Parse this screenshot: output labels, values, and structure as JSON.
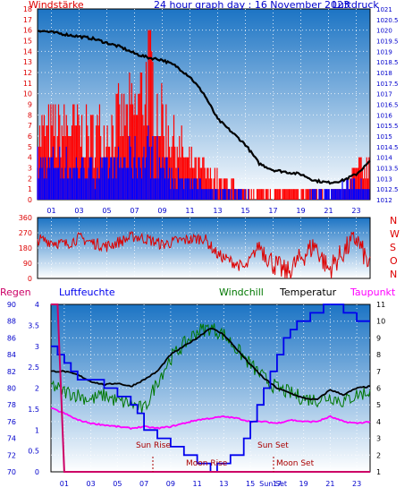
{
  "colors": {
    "wind": "#dd0000",
    "gust": "#ff0000",
    "speed": "#0000ff",
    "pressure": "#000000",
    "direction": "#dd0000",
    "rain": "#cc0066",
    "humidity": "#0000ee",
    "windchill": "#007700",
    "temperature": "#000000",
    "dewpoint": "#ff00ff",
    "axis_text_blue": "#0000cc",
    "sky_top": "#1c74c4",
    "sky_bottom": "#ffffff"
  },
  "chart_data": [
    {
      "type": "line",
      "panel": "wind-pressure",
      "title": "24 hour graph day : 16 November 2023",
      "left_label": "Windstärke",
      "right_label": "Luftdruck",
      "x_tick_labels": [
        "01",
        "03",
        "05",
        "07",
        "09",
        "11",
        "13",
        "15",
        "17",
        "19",
        "21",
        "23"
      ],
      "left_axis": {
        "min": 0,
        "max": 18,
        "ticks": [
          "0",
          "1",
          "2",
          "3",
          "4",
          "5",
          "6",
          "7",
          "8",
          "9",
          "10",
          "11",
          "12",
          "13",
          "14",
          "15",
          "16",
          "17",
          "18"
        ]
      },
      "right_axis": {
        "min": 1012,
        "max": 1021,
        "ticks": [
          "1012",
          "1012.5",
          "1013",
          "1013.5",
          "1014",
          "1014.5",
          "1015",
          "1015.5",
          "1016",
          "1016.5",
          "1017",
          "1017.5",
          "1018",
          "1018.5",
          "1019",
          "1019.5",
          "1020",
          "1020.5",
          "1021"
        ]
      },
      "pressure_series": {
        "x": [
          0,
          1,
          2,
          3,
          4,
          5,
          6,
          7,
          8,
          9,
          10,
          11,
          12,
          13,
          14,
          15,
          16,
          17,
          18,
          19,
          20,
          21,
          22,
          23,
          24
        ],
        "y": [
          1020,
          1019.9,
          1019.8,
          1019.7,
          1019.6,
          1019.4,
          1019.2,
          1018.9,
          1018.7,
          1018.6,
          1018.3,
          1017.8,
          1017,
          1015.8,
          1015.2,
          1014.6,
          1013.7,
          1013.4,
          1013.3,
          1013.2,
          1012.9,
          1012.8,
          1012.9,
          1013.2,
          1013.8
        ]
      },
      "wind_envelope": {
        "x": [
          0,
          2,
          4,
          6,
          7,
          7.5,
          8,
          9,
          10,
          11,
          12,
          13,
          14,
          15,
          16,
          17,
          18,
          19,
          20,
          21,
          22,
          23,
          24
        ],
        "gust_max": [
          9,
          10,
          9,
          11,
          12,
          14,
          18,
          11,
          8,
          5,
          4,
          3,
          2,
          1,
          1,
          1,
          1,
          1,
          1,
          1,
          1,
          4,
          5
        ],
        "speed_max": [
          5,
          5,
          4,
          5,
          6,
          6,
          7,
          5,
          3,
          2,
          2,
          1,
          1,
          1,
          0,
          0,
          0,
          0,
          1,
          1,
          2,
          2,
          1
        ]
      }
    },
    {
      "type": "scatter",
      "panel": "wind-direction",
      "left_axis": {
        "min": 0,
        "max": 360,
        "ticks": [
          "0",
          "90",
          "180",
          "270",
          "360"
        ]
      },
      "right_labels": [
        "N",
        "W",
        "S",
        "O",
        "N"
      ],
      "direction_series": {
        "x": [
          0,
          1,
          2,
          3,
          4,
          5,
          6,
          7,
          8,
          9,
          10,
          11,
          12,
          13,
          14,
          15,
          16,
          17,
          18,
          19,
          20,
          21,
          22,
          23,
          24
        ],
        "y": [
          230,
          220,
          200,
          240,
          210,
          190,
          220,
          250,
          230,
          200,
          220,
          230,
          240,
          140,
          100,
          60,
          200,
          90,
          30,
          120,
          200,
          50,
          150,
          240,
          60
        ]
      }
    },
    {
      "type": "line",
      "panel": "temperature-humidity",
      "legend": [
        "Regen",
        "Luftfeuchte",
        "Windchill",
        "Temperatur",
        "Taupunkt"
      ],
      "humidity_axis": {
        "min": 70,
        "max": 90,
        "ticks": [
          "70",
          "72",
          "74",
          "76",
          "78",
          "80",
          "82",
          "84",
          "86",
          "88",
          "90"
        ]
      },
      "rain_axis": {
        "min": 0,
        "max": 4,
        "ticks": [
          "0",
          "0.5",
          "1",
          "1.5",
          "2",
          "2.5",
          "3",
          "3.5",
          "4"
        ]
      },
      "temp_axis": {
        "min": 1,
        "max": 11,
        "ticks": [
          "1",
          "2",
          "3",
          "4",
          "5",
          "6",
          "7",
          "8",
          "9",
          "10",
          "11"
        ]
      },
      "x_tick_labels": [
        "01",
        "03",
        "05",
        "07",
        "09",
        "11",
        "13",
        "15",
        "17",
        "19",
        "21",
        "23"
      ],
      "x_tick_overlap_label": "Sun Set",
      "annotations": {
        "sun_rise": "Sun Rise",
        "moon_rise": "Moon Rise",
        "sun_set": "Sun Set",
        "moon_set": "Moon Set"
      },
      "humidity_series": {
        "x": [
          0,
          1,
          2,
          3,
          4,
          5,
          6,
          7,
          8,
          9,
          10,
          11,
          12,
          13,
          14,
          15,
          16,
          17,
          18,
          19,
          20,
          21,
          22,
          23,
          24
        ],
        "y": [
          85,
          83,
          81,
          81,
          80,
          79,
          78,
          75,
          74,
          73,
          72,
          71,
          70,
          71,
          72,
          76,
          80,
          84,
          87,
          88,
          89,
          90,
          89,
          88,
          88
        ]
      },
      "temperature_series": {
        "x": [
          0,
          1,
          2,
          3,
          4,
          5,
          6,
          7,
          8,
          9,
          10,
          11,
          12,
          13,
          14,
          15,
          16,
          17,
          18,
          19,
          20,
          21,
          22,
          23,
          24
        ],
        "y": [
          7,
          7,
          6.8,
          6.4,
          6.2,
          6.3,
          6.1,
          6.5,
          7,
          8,
          8.5,
          9,
          9.6,
          9.2,
          8.3,
          7.4,
          6.6,
          6,
          5.7,
          5.4,
          5.3,
          5.9,
          5.6,
          6,
          6.1
        ]
      },
      "windchill_series": {
        "x": [
          0,
          1,
          2,
          3,
          4,
          5,
          6,
          7,
          8,
          9,
          10,
          11,
          12,
          13,
          14,
          15,
          16,
          17,
          18,
          19,
          20,
          21,
          22,
          23,
          24
        ],
        "y": [
          6.2,
          5.8,
          5.6,
          5.3,
          5.6,
          5.2,
          5.1,
          4.7,
          6.4,
          7.8,
          8.6,
          9.4,
          9.6,
          9.2,
          8.3,
          7.4,
          6.6,
          6,
          5.7,
          5.4,
          5.3,
          5.5,
          5.2,
          5.6,
          5.8
        ]
      },
      "dewpoint_series": {
        "x": [
          0,
          1,
          2,
          3,
          4,
          5,
          6,
          7,
          8,
          9,
          10,
          11,
          12,
          13,
          14,
          15,
          16,
          17,
          18,
          19,
          20,
          21,
          22,
          23,
          24
        ],
        "y": [
          4.8,
          4.5,
          4.1,
          3.9,
          3.8,
          3.7,
          3.6,
          3.7,
          3.6,
          3.7,
          3.9,
          4.1,
          4.2,
          4.3,
          4.2,
          4,
          4,
          3.9,
          4.1,
          4,
          4,
          4.3,
          4,
          3.9,
          4
        ]
      },
      "rain_series": {
        "x": [
          0,
          0.5,
          1,
          24
        ],
        "y": [
          4,
          4,
          0,
          0
        ]
      }
    }
  ]
}
